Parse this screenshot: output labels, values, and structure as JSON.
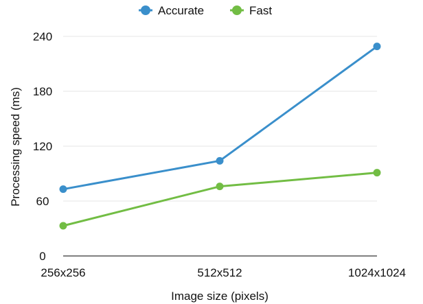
{
  "chart_data": {
    "type": "line",
    "title": "",
    "xlabel": "Image size (pixels)",
    "ylabel": "Processing speed (ms)",
    "categories": [
      "256x256",
      "512x512",
      "1024x1024"
    ],
    "ylim": [
      0,
      240
    ],
    "yticks": [
      0,
      60,
      120,
      180,
      240
    ],
    "grid": true,
    "legend_position": "top-center",
    "series": [
      {
        "name": "Accurate",
        "color": "#3a8fcb",
        "values": [
          73,
          104,
          229
        ]
      },
      {
        "name": "Fast",
        "color": "#72bd44",
        "values": [
          33,
          76,
          91
        ]
      }
    ]
  }
}
